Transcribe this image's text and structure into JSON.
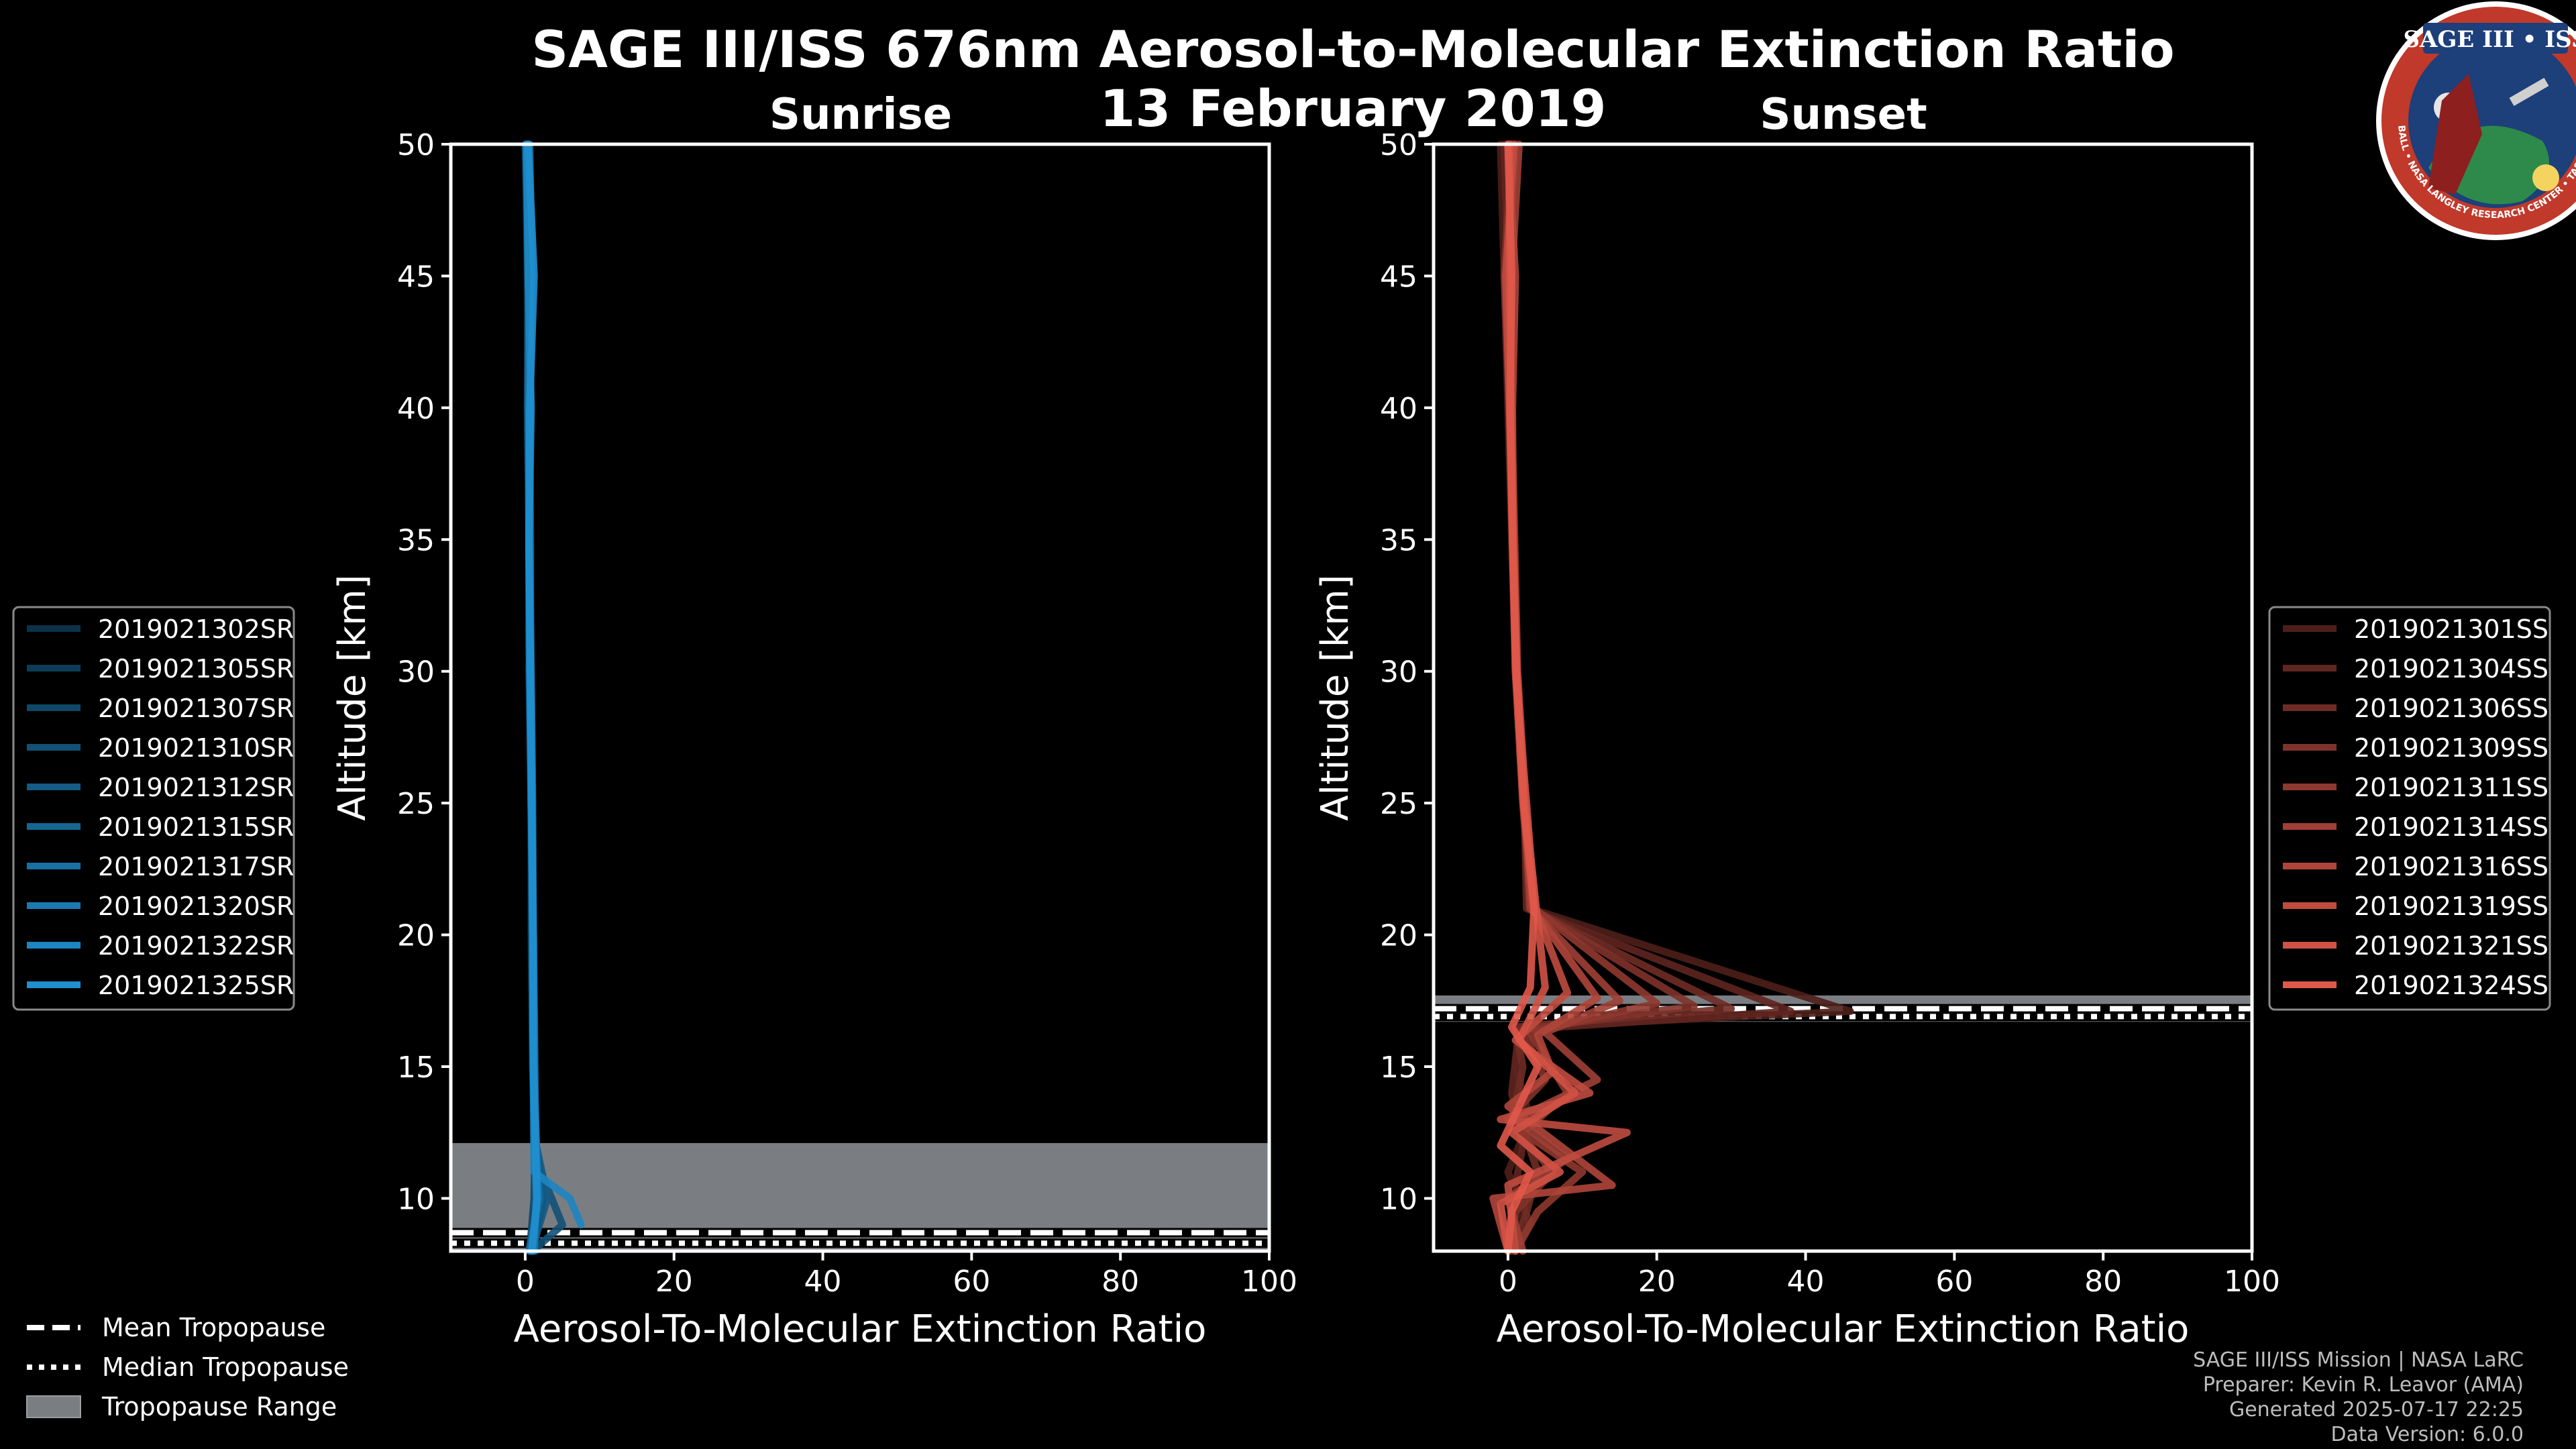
{
  "title_line1": "SAGE III/ISS 676nm Aerosol-to-Molecular Extinction Ratio",
  "title_line2": "13 February 2019",
  "logo": {
    "text": "SAGE III • ISS",
    "ring_text": "BALL • NASA LANGLEY RESEARCH CENTER • TAS-I • ESA"
  },
  "credits": [
    "SAGE III/ISS Mission | NASA LaRC",
    "Preparer: Kevin R. Leavor (AMA)",
    "Generated 2025-07-17 22:25",
    "Data Version: 6.0.0"
  ],
  "tropo_legend": [
    "Mean Tropopause",
    "Median Tropopause",
    "Tropopause Range"
  ],
  "colors": {
    "sunrise": "#1f8fd0",
    "sunset": "#e0584a",
    "range": "#7a7e82",
    "background": "#000000"
  },
  "chart_data": [
    {
      "type": "line",
      "title": "Sunrise",
      "xlabel": "Aerosol-To-Molecular Extinction Ratio",
      "ylabel": "Altitude [km]",
      "xlim": [
        -10,
        100
      ],
      "ylim": [
        8,
        50
      ],
      "xticks": [
        "0",
        "20",
        "40",
        "60",
        "80",
        "100"
      ],
      "yticks": [
        "10",
        "15",
        "20",
        "25",
        "30",
        "35",
        "40",
        "45",
        "50"
      ],
      "tropopause": {
        "mean": 8.7,
        "median": 8.3,
        "range": [
          8.0,
          12.1
        ]
      },
      "series": [
        {
          "name": "2019021302SR",
          "x": [
            0.0,
            0.3,
            0.4,
            0.5,
            0.5,
            0.8,
            0.8,
            1.0,
            1.3,
            1.6,
            1.5
          ],
          "y": [
            50,
            45,
            40,
            35,
            30,
            25,
            20,
            15,
            12,
            10.5,
            8
          ]
        },
        {
          "name": "2019021305SR",
          "x": [
            0.2,
            0.4,
            0.3,
            0.5,
            0.6,
            0.8,
            0.9,
            1.0,
            1.4,
            2.5,
            1.0
          ],
          "y": [
            50,
            45,
            40,
            35,
            30,
            25,
            20,
            15,
            12,
            10,
            8
          ]
        },
        {
          "name": "2019021307SR",
          "x": [
            0.4,
            0.6,
            0.5,
            0.6,
            0.7,
            0.9,
            1.0,
            1.1,
            1.3,
            1.2,
            0.6
          ],
          "y": [
            50,
            45,
            40,
            35,
            30,
            25,
            20,
            15,
            12,
            10,
            8
          ]
        },
        {
          "name": "2019021310SR",
          "x": [
            0.3,
            0.7,
            0.6,
            0.5,
            0.6,
            0.9,
            1.1,
            1.2,
            1.4,
            5.0,
            1.0
          ],
          "y": [
            50,
            45,
            40,
            35,
            30,
            25,
            20,
            15,
            11.5,
            9,
            8
          ]
        },
        {
          "name": "2019021312SR",
          "x": [
            0.5,
            0.8,
            0.6,
            0.7,
            0.7,
            0.8,
            1.0,
            1.2,
            1.5,
            3.0,
            0.8
          ],
          "y": [
            50,
            45,
            40,
            35,
            30,
            25,
            20,
            15,
            12,
            10,
            8
          ]
        },
        {
          "name": "2019021315SR",
          "x": [
            0.6,
            0.9,
            0.5,
            0.6,
            0.8,
            1.0,
            1.1,
            1.3,
            1.4,
            2.0,
            0.5
          ],
          "y": [
            50,
            45,
            40,
            35,
            30,
            25,
            20,
            15,
            12,
            10,
            8
          ]
        },
        {
          "name": "2019021317SR",
          "x": [
            0.1,
            0.5,
            0.4,
            0.6,
            0.7,
            0.9,
            1.0,
            1.1,
            1.5,
            1.8,
            0.7
          ],
          "y": [
            50,
            45,
            40,
            35,
            30,
            25,
            20,
            15,
            12,
            10,
            8
          ]
        },
        {
          "name": "2019021320SR",
          "x": [
            0.3,
            0.6,
            0.7,
            0.5,
            0.6,
            0.8,
            1.1,
            1.2,
            1.3,
            1.5,
            1.2
          ],
          "y": [
            50,
            45,
            40,
            35,
            30,
            25,
            20,
            15,
            12,
            10,
            8
          ]
        },
        {
          "name": "2019021322SR",
          "x": [
            0.2,
            0.4,
            0.8,
            0.5,
            0.7,
            0.9,
            1.0,
            1.1,
            1.2,
            6.0,
            7.5
          ],
          "y": [
            50,
            45,
            40,
            35,
            30,
            25,
            20,
            15,
            11,
            10,
            9
          ]
        },
        {
          "name": "2019021325SR",
          "x": [
            0.4,
            1.2,
            0.6,
            0.5,
            0.7,
            0.9,
            1.0,
            1.1,
            1.4,
            1.6,
            0.9
          ],
          "y": [
            50,
            45,
            40,
            35,
            30,
            25,
            20,
            15,
            12,
            10,
            8
          ]
        }
      ]
    },
    {
      "type": "line",
      "title": "Sunset",
      "xlabel": "Aerosol-To-Molecular Extinction Ratio",
      "ylabel": "Altitude [km]",
      "xlim": [
        -10,
        100
      ],
      "ylim": [
        8,
        50
      ],
      "xticks": [
        "0",
        "20",
        "40",
        "60",
        "80",
        "100"
      ],
      "yticks": [
        "10",
        "15",
        "20",
        "25",
        "30",
        "35",
        "40",
        "45",
        "50"
      ],
      "tropopause": {
        "mean": 17.2,
        "median": 16.9,
        "range": [
          16.7,
          17.7
        ]
      },
      "series": [
        {
          "name": "2019021301SS",
          "x": [
            -1.0,
            -0.5,
            0.0,
            0.5,
            1.0,
            2.0,
            3.0,
            46.0,
            2.0,
            1.0,
            3.0,
            0.0,
            2.0,
            0.0
          ],
          "y": [
            50,
            45,
            40,
            35,
            30,
            25,
            21,
            17.1,
            16.5,
            15,
            13,
            11,
            9.5,
            8
          ]
        },
        {
          "name": "2019021304SS",
          "x": [
            -0.5,
            0.0,
            0.3,
            0.6,
            1.0,
            2.2,
            2.5,
            38.0,
            1.5,
            0.5,
            2.0,
            1.0,
            3.0,
            1.0
          ],
          "y": [
            50,
            45,
            40,
            35,
            30,
            25,
            21,
            17.1,
            16.4,
            14,
            12,
            10.5,
            9,
            8
          ]
        },
        {
          "name": "2019021306SS",
          "x": [
            0.0,
            0.5,
            0.4,
            0.8,
            1.1,
            2.1,
            2.8,
            30.0,
            1.0,
            2.0,
            1.0,
            4.0,
            2.0,
            0.5
          ],
          "y": [
            50,
            45,
            40,
            35,
            30,
            25,
            21,
            17.2,
            16.5,
            15,
            13.5,
            11,
            9,
            8
          ]
        },
        {
          "name": "2019021309SS",
          "x": [
            0.5,
            -0.5,
            0.2,
            0.7,
            1.2,
            2.3,
            3.2,
            25.0,
            2.0,
            5.0,
            0.0,
            6.0,
            1.0,
            0.0
          ],
          "y": [
            50,
            45,
            40,
            35,
            30,
            25,
            21,
            17.3,
            16.4,
            14.5,
            13,
            11,
            9.5,
            8
          ]
        },
        {
          "name": "2019021311SS",
          "x": [
            1.0,
            0.0,
            0.5,
            0.9,
            1.3,
            2.4,
            3.5,
            20.0,
            3.0,
            8.0,
            2.0,
            10.0,
            4.0,
            1.0
          ],
          "y": [
            50,
            45,
            40,
            35,
            30,
            25,
            21,
            17.4,
            16.3,
            14,
            12.5,
            11,
            9.5,
            8
          ]
        },
        {
          "name": "2019021314SS",
          "x": [
            1.5,
            0.5,
            0.3,
            0.8,
            1.1,
            2.2,
            3.0,
            15.0,
            5.0,
            12.0,
            1.0,
            8.0,
            0.0,
            2.0
          ],
          "y": [
            50,
            45,
            40,
            35,
            30,
            25,
            21,
            17.5,
            16.3,
            14.5,
            13,
            11.5,
            10,
            8
          ]
        },
        {
          "name": "2019021316SS",
          "x": [
            0.0,
            1.0,
            0.6,
            0.7,
            1.0,
            2.0,
            3.3,
            12.0,
            4.0,
            6.0,
            0.0,
            14.0,
            -2.0,
            0.0
          ],
          "y": [
            50,
            45,
            40,
            35,
            30,
            25,
            21,
            17.6,
            16.2,
            14.8,
            13.5,
            10.5,
            10,
            8
          ]
        },
        {
          "name": "2019021319SS",
          "x": [
            0.8,
            -0.3,
            0.2,
            0.6,
            1.0,
            2.5,
            3.6,
            8.0,
            1.0,
            11.0,
            -1.0,
            16.0,
            0.0,
            1.0
          ],
          "y": [
            50,
            45,
            40,
            35,
            30,
            25,
            21,
            17.8,
            16.0,
            14,
            13,
            12.5,
            10.5,
            8
          ]
        },
        {
          "name": "2019021321SS",
          "x": [
            0.3,
            0.2,
            0.4,
            0.7,
            1.2,
            2.3,
            3.8,
            5.0,
            1.5,
            9.0,
            0.5,
            7.0,
            -1.0,
            0.0
          ],
          "y": [
            50,
            45,
            40,
            35,
            30,
            25,
            21,
            18.0,
            16.0,
            14,
            12.5,
            11,
            9.8,
            8
          ]
        },
        {
          "name": "2019021324SS",
          "x": [
            0.0,
            0.5,
            0.3,
            0.6,
            1.1,
            2.1,
            3.5,
            3.0,
            0.5,
            4.0,
            -1.0,
            3.0,
            0.5,
            0.0
          ],
          "y": [
            50,
            45,
            40,
            35,
            30,
            25,
            21,
            18.0,
            16.5,
            15,
            12,
            11,
            9.5,
            8
          ]
        }
      ]
    }
  ]
}
